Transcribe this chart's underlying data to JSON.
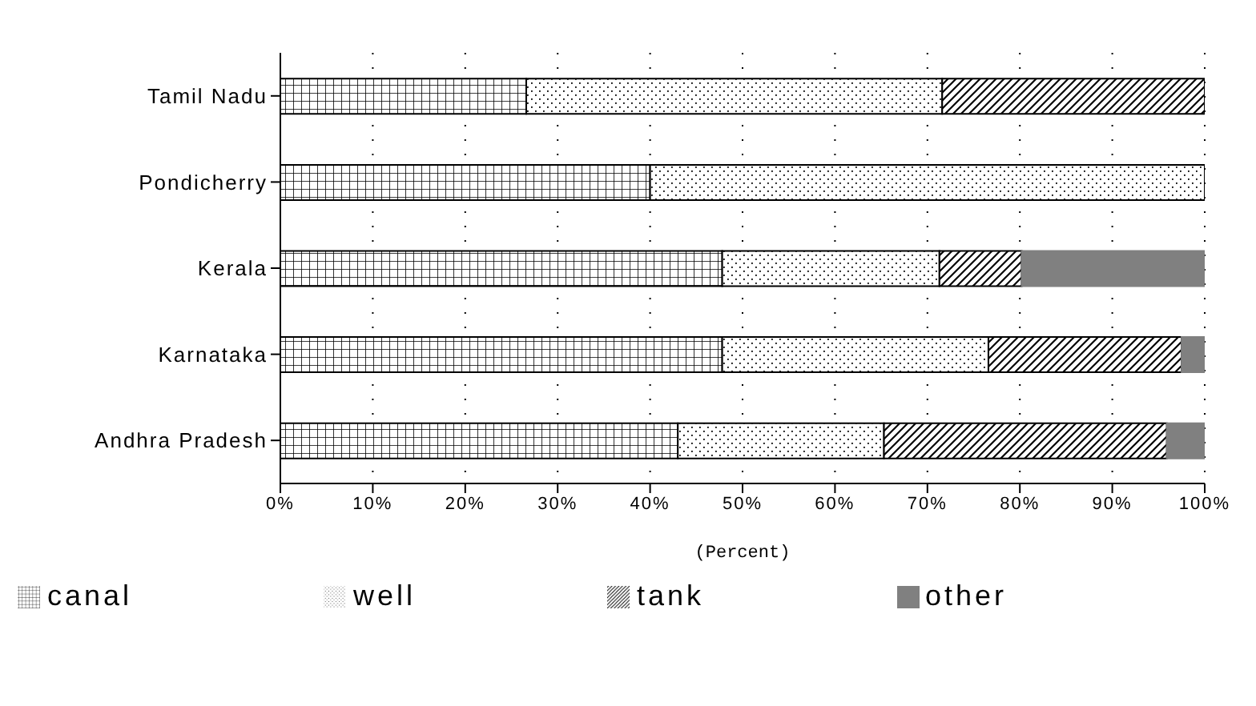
{
  "chart_data": {
    "type": "bar",
    "orientation": "horizontal",
    "stacked": true,
    "xlabel": "(Percent)",
    "categories": [
      "Tamil Nadu",
      "Pondicherry",
      "Kerala",
      "Karnataka",
      "Andhra Pradesh"
    ],
    "series": [
      {
        "name": "canal",
        "color": "#000000",
        "values": [
          26.6,
          40.0,
          47.8,
          47.8,
          43.0
        ]
      },
      {
        "name": "well",
        "color": "#000000",
        "values": [
          45.0,
          60.0,
          23.5,
          28.8,
          22.3
        ]
      },
      {
        "name": "tank",
        "color": "#000000",
        "values": [
          28.4,
          0,
          8.9,
          20.9,
          30.6
        ]
      },
      {
        "name": "other",
        "color": "#808080",
        "values": [
          0,
          0,
          19.8,
          2.5,
          4.1
        ]
      }
    ],
    "xlim": [
      0,
      100
    ],
    "xticks": [
      {
        "value": 0,
        "label": "0%"
      },
      {
        "value": 10,
        "label": "10%"
      },
      {
        "value": 20,
        "label": "20%"
      },
      {
        "value": 30,
        "label": "30%"
      },
      {
        "value": 40,
        "label": "40%"
      },
      {
        "value": 50,
        "label": "50%"
      },
      {
        "value": 60,
        "label": "60%"
      },
      {
        "value": 70,
        "label": "70%"
      },
      {
        "value": 80,
        "label": "80%"
      },
      {
        "value": 90,
        "label": "90%"
      },
      {
        "value": 100,
        "label": "100%"
      }
    ],
    "grid": "x",
    "legend": "bottom"
  }
}
